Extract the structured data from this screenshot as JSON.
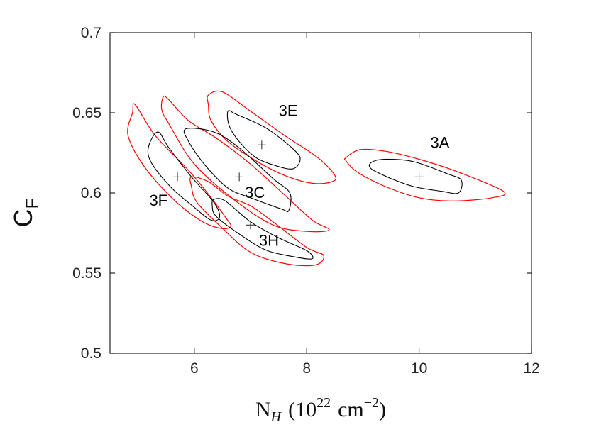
{
  "chart_data": {
    "type": "contour",
    "xlabel": {
      "base": "N",
      "sub": "H",
      "open": "(10",
      "sup1": "22",
      "unit": "cm",
      "sup2": "−2",
      "close": ")"
    },
    "ylabel": {
      "base": "C",
      "sub": "F"
    },
    "xlim": [
      4.5,
      12
    ],
    "ylim": [
      0.5,
      0.7
    ],
    "xticks": [
      6,
      8,
      10,
      12
    ],
    "xtick_labels": [
      "6",
      "8",
      "10",
      "12"
    ],
    "yticks": [
      0.5,
      0.55,
      0.6,
      0.65,
      0.7
    ],
    "ytick_labels": [
      "0.5",
      "0.55",
      "0.6",
      "0.65",
      "0.7"
    ],
    "grid": false,
    "colors": {
      "inner": "#000000",
      "outer": "#ff0000",
      "axis": "#262626"
    },
    "regions": [
      {
        "label": "3A",
        "best_fit": [
          10.0,
          0.61
        ],
        "label_pos": [
          10.2,
          0.628
        ],
        "inner": [
          [
            9.15,
            0.619
          ],
          [
            9.4,
            0.621
          ],
          [
            9.9,
            0.6195
          ],
          [
            10.5,
            0.612
          ],
          [
            10.75,
            0.608
          ],
          [
            10.7,
            0.6
          ],
          [
            10.4,
            0.601
          ],
          [
            9.9,
            0.604
          ],
          [
            9.5,
            0.609
          ],
          [
            9.15,
            0.615
          ]
        ],
        "outer": [
          [
            8.7,
            0.622
          ],
          [
            8.95,
            0.627
          ],
          [
            9.4,
            0.626
          ],
          [
            10.0,
            0.621
          ],
          [
            10.7,
            0.613
          ],
          [
            11.5,
            0.601
          ],
          [
            11.3,
            0.597
          ],
          [
            10.6,
            0.595
          ],
          [
            10.0,
            0.597
          ],
          [
            9.4,
            0.604
          ],
          [
            8.9,
            0.613
          ],
          [
            8.7,
            0.62
          ]
        ]
      },
      {
        "label": "3E",
        "best_fit": [
          7.2,
          0.63
        ],
        "label_pos": [
          7.5,
          0.648
        ],
        "inner": [
          [
            6.6,
            0.651
          ],
          [
            6.75,
            0.649
          ],
          [
            7.3,
            0.64
          ],
          [
            7.8,
            0.626
          ],
          [
            7.88,
            0.62
          ],
          [
            7.75,
            0.615
          ],
          [
            7.45,
            0.617
          ],
          [
            7.1,
            0.622
          ],
          [
            6.8,
            0.632
          ],
          [
            6.62,
            0.642
          ]
        ],
        "outer": [
          [
            6.25,
            0.661
          ],
          [
            6.5,
            0.663
          ],
          [
            7.0,
            0.651
          ],
          [
            7.6,
            0.636
          ],
          [
            8.2,
            0.622
          ],
          [
            8.5,
            0.611
          ],
          [
            8.45,
            0.607
          ],
          [
            8.1,
            0.606
          ],
          [
            7.6,
            0.611
          ],
          [
            7.1,
            0.62
          ],
          [
            6.6,
            0.632
          ],
          [
            6.3,
            0.645
          ],
          [
            6.25,
            0.655
          ]
        ]
      },
      {
        "label": "3C",
        "best_fit": [
          6.8,
          0.61
        ],
        "label_pos": [
          6.9,
          0.597
        ],
        "inner": [
          [
            5.85,
            0.64
          ],
          [
            6.35,
            0.638
          ],
          [
            6.8,
            0.628
          ],
          [
            7.4,
            0.609
          ],
          [
            7.7,
            0.6
          ],
          [
            7.68,
            0.589
          ],
          [
            7.55,
            0.59
          ],
          [
            7.0,
            0.597
          ],
          [
            6.6,
            0.603
          ],
          [
            6.2,
            0.617
          ],
          [
            5.9,
            0.632
          ]
        ],
        "outer": [
          [
            5.45,
            0.66
          ],
          [
            5.55,
            0.658
          ],
          [
            5.9,
            0.645
          ],
          [
            6.4,
            0.634
          ],
          [
            7.0,
            0.618
          ],
          [
            7.6,
            0.599
          ],
          [
            8.1,
            0.583
          ],
          [
            8.4,
            0.577
          ],
          [
            8.0,
            0.576
          ],
          [
            7.4,
            0.58
          ],
          [
            6.7,
            0.596
          ],
          [
            6.0,
            0.618
          ],
          [
            5.55,
            0.643
          ],
          [
            5.42,
            0.652
          ]
        ]
      },
      {
        "label": "3F",
        "best_fit": [
          5.7,
          0.61
        ],
        "label_pos": [
          5.2,
          0.592
        ],
        "inner": [
          [
            5.35,
            0.638
          ],
          [
            5.55,
            0.628
          ],
          [
            5.95,
            0.61
          ],
          [
            6.35,
            0.594
          ],
          [
            6.45,
            0.585
          ],
          [
            6.3,
            0.583
          ],
          [
            6.0,
            0.591
          ],
          [
            5.6,
            0.603
          ],
          [
            5.25,
            0.618
          ],
          [
            5.18,
            0.628
          ]
        ],
        "outer": [
          [
            4.95,
            0.655
          ],
          [
            5.3,
            0.636
          ],
          [
            5.9,
            0.614
          ],
          [
            6.3,
            0.597
          ],
          [
            6.55,
            0.585
          ],
          [
            6.65,
            0.579
          ],
          [
            6.45,
            0.578
          ],
          [
            6.1,
            0.583
          ],
          [
            5.6,
            0.597
          ],
          [
            5.1,
            0.617
          ],
          [
            4.82,
            0.636
          ],
          [
            4.9,
            0.65
          ]
        ]
      },
      {
        "label": "3H",
        "best_fit": [
          7.0,
          0.58
        ],
        "label_pos": [
          7.15,
          0.567
        ],
        "inner": [
          [
            6.35,
            0.596
          ],
          [
            6.55,
            0.595
          ],
          [
            7.0,
            0.582
          ],
          [
            7.5,
            0.572
          ],
          [
            8.0,
            0.564
          ],
          [
            8.1,
            0.559
          ],
          [
            7.8,
            0.56
          ],
          [
            7.3,
            0.564
          ],
          [
            6.9,
            0.572
          ],
          [
            6.4,
            0.585
          ],
          [
            6.32,
            0.592
          ]
        ],
        "outer": [
          [
            5.95,
            0.61
          ],
          [
            6.25,
            0.607
          ],
          [
            6.6,
            0.598
          ],
          [
            7.0,
            0.592
          ],
          [
            7.4,
            0.582
          ],
          [
            8.0,
            0.566
          ],
          [
            8.3,
            0.561
          ],
          [
            8.15,
            0.555
          ],
          [
            7.6,
            0.556
          ],
          [
            7.0,
            0.563
          ],
          [
            6.5,
            0.578
          ],
          [
            6.05,
            0.594
          ],
          [
            5.95,
            0.604
          ]
        ]
      }
    ]
  }
}
